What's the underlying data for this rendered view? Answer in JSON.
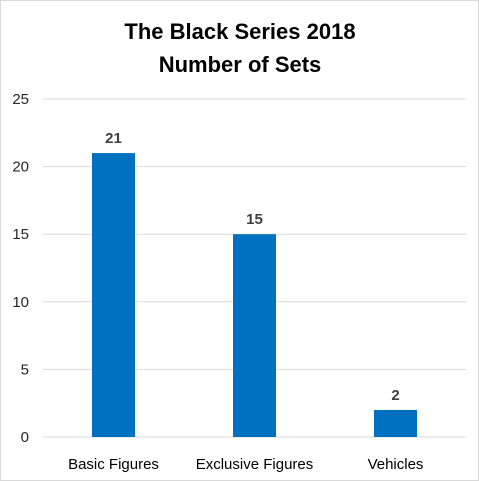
{
  "chart_data": {
    "type": "bar",
    "title": [
      "The Black Series 2018",
      "Number of Sets"
    ],
    "categories": [
      "Basic Figures",
      "Exclusive Figures",
      "Vehicles"
    ],
    "values": [
      21,
      15,
      2
    ],
    "data_labels": [
      "21",
      "15",
      "2"
    ],
    "yticks": [
      "0",
      "5",
      "10",
      "15",
      "20",
      "25"
    ],
    "ylim": [
      0,
      25
    ],
    "xlabel": "",
    "ylabel": "",
    "grid": true,
    "legend": "none",
    "bar_color": "#0070C0",
    "gridline_color": "#d9d9d9"
  }
}
